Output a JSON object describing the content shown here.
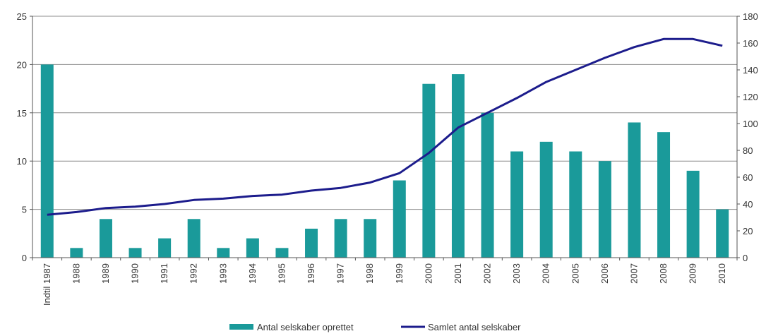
{
  "chart_data": {
    "type": "bar+line",
    "categories": [
      "Indtil 1987",
      "1988",
      "1989",
      "1990",
      "1991",
      "1992",
      "1993",
      "1994",
      "1995",
      "1996",
      "1997",
      "1998",
      "1999",
      "2000",
      "2001",
      "2002",
      "2003",
      "2004",
      "2005",
      "2006",
      "2007",
      "2008",
      "2009",
      "2010"
    ],
    "series": [
      {
        "name": "Antal selskaber oprettet",
        "type": "bar",
        "axis": "left",
        "color": "#1a9a9a",
        "values": [
          20,
          1,
          4,
          1,
          2,
          4,
          1,
          2,
          1,
          3,
          4,
          4,
          8,
          18,
          19,
          15,
          11,
          12,
          11,
          10,
          14,
          13,
          9,
          5
        ]
      },
      {
        "name": "Samlet antal selskaber",
        "type": "line",
        "axis": "right",
        "color": "#1c1c8c",
        "values": [
          32,
          34,
          37,
          38,
          40,
          43,
          44,
          46,
          47,
          50,
          52,
          56,
          63,
          78,
          97,
          108,
          119,
          131,
          140,
          149,
          157,
          163,
          163,
          158
        ]
      }
    ],
    "y_left": {
      "ylim": [
        0,
        25
      ],
      "ticks": [
        "0",
        "5",
        "10",
        "15",
        "20",
        "25"
      ]
    },
    "y_right": {
      "ylim": [
        0,
        180
      ],
      "ticks": [
        "0",
        "20",
        "40",
        "60",
        "80",
        "100",
        "120",
        "140",
        "160",
        "180"
      ]
    },
    "grid": true,
    "legend_position": "bottom"
  }
}
